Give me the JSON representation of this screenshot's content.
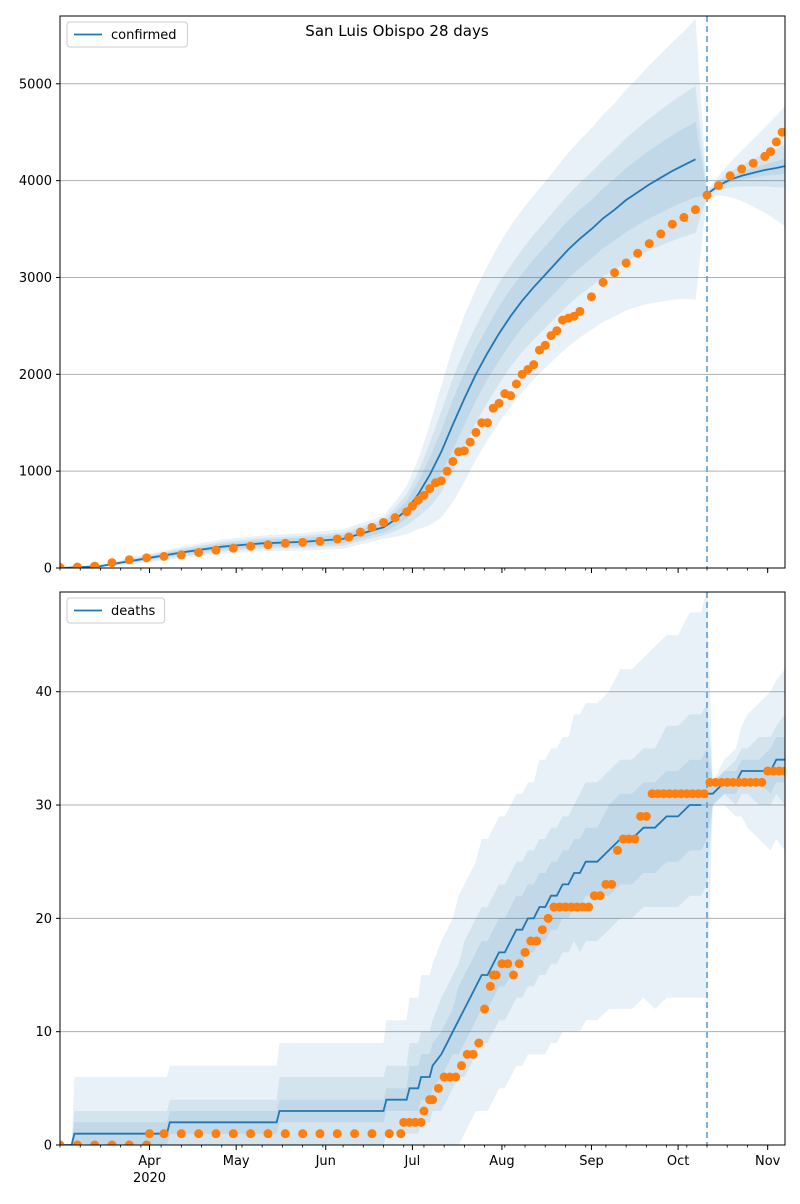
{
  "title": "San Luis Obispo 28 days",
  "colors": {
    "model": "#1f77b4",
    "observed": "#ff7f0e",
    "band": "#1f77b4",
    "grid": "#b0b0b0",
    "forecast_start": "#5aa0d8"
  },
  "x_ticks": [
    {
      "label": "Apr",
      "sub": "2020",
      "day": 31
    },
    {
      "label": "May",
      "day": 61
    },
    {
      "label": "Jun",
      "day": 92
    },
    {
      "label": "Jul",
      "day": 122
    },
    {
      "label": "Aug",
      "day": 153
    },
    {
      "label": "Sep",
      "day": 184
    },
    {
      "label": "Oct",
      "day": 214
    },
    {
      "label": "Nov",
      "day": 245
    }
  ],
  "chart_data": [
    {
      "type": "line",
      "series_name": "confirmed",
      "legend": "confirmed",
      "legend_position": "top-left",
      "grid": "horizontal",
      "x_start_date": "2020-03-01",
      "xlim_days": [
        0,
        251
      ],
      "ylim": [
        0,
        5700
      ],
      "yticks": [
        0,
        1000,
        2000,
        3000,
        4000,
        5000
      ],
      "forecast_start_day": 224,
      "model_day": [
        0,
        14,
        28,
        42,
        56,
        70,
        84,
        98,
        112,
        116,
        120,
        124,
        128,
        132,
        136,
        140,
        144,
        148,
        152,
        156,
        160,
        164,
        168,
        172,
        176,
        180,
        184,
        188,
        192,
        196,
        200,
        204,
        208,
        212,
        216,
        220,
        224,
        228,
        232,
        236,
        240,
        244,
        248,
        251
      ],
      "model_value": [
        0,
        20,
        90,
        160,
        220,
        255,
        270,
        300,
        420,
        500,
        600,
        760,
        960,
        1200,
        1480,
        1750,
        2000,
        2220,
        2420,
        2600,
        2760,
        2900,
        3030,
        3160,
        3290,
        3400,
        3500,
        3610,
        3700,
        3800,
        3880,
        3960,
        4030,
        4100,
        4160,
        4220,
        3860,
        3950,
        4010,
        4050,
        4080,
        4110,
        4130,
        4150
      ],
      "band_half_widths": [
        [
          0,
          5,
          15,
          25,
          30,
          35,
          40,
          45,
          50,
          70,
          90,
          130,
          180,
          220,
          260,
          270,
          270,
          270,
          280,
          280,
          280,
          290,
          290,
          300,
          300,
          300,
          300,
          310,
          320,
          330,
          340,
          350,
          360,
          370,
          380,
          390,
          10,
          20,
          30,
          40,
          50,
          60,
          70,
          80
        ],
        [
          0,
          10,
          25,
          40,
          50,
          55,
          60,
          70,
          80,
          120,
          160,
          230,
          330,
          420,
          480,
          500,
          500,
          510,
          520,
          520,
          530,
          540,
          550,
          560,
          570,
          580,
          590,
          600,
          620,
          640,
          660,
          680,
          700,
          720,
          740,
          760,
          20,
          50,
          80,
          110,
          140,
          170,
          200,
          220
        ],
        [
          0,
          15,
          40,
          60,
          75,
          80,
          90,
          100,
          120,
          180,
          250,
          360,
          520,
          680,
          800,
          860,
          880,
          900,
          920,
          930,
          940,
          950,
          960,
          980,
          1000,
          1020,
          1040,
          1070,
          1100,
          1140,
          1180,
          1230,
          1280,
          1330,
          1380,
          1450,
          40,
          100,
          180,
          260,
          350,
          440,
          540,
          620
        ]
      ],
      "observed_day": [
        0,
        6,
        12,
        18,
        24,
        30,
        36,
        42,
        48,
        54,
        60,
        66,
        72,
        78,
        84,
        90,
        96,
        100,
        104,
        108,
        112,
        116,
        120,
        122,
        124,
        126,
        128,
        130,
        132,
        134,
        136,
        138,
        140,
        142,
        144,
        146,
        148,
        150,
        152,
        154,
        156,
        158,
        160,
        162,
        164,
        166,
        168,
        170,
        172,
        174,
        176,
        178,
        180,
        184,
        188,
        192,
        196,
        200,
        204,
        208,
        212,
        216,
        220,
        224,
        228,
        232,
        236,
        240,
        244,
        246,
        248,
        250
      ],
      "observed_value": [
        5,
        10,
        20,
        55,
        85,
        105,
        120,
        135,
        160,
        185,
        205,
        225,
        240,
        255,
        265,
        275,
        300,
        320,
        370,
        420,
        470,
        520,
        580,
        640,
        700,
        750,
        820,
        880,
        900,
        1000,
        1100,
        1200,
        1210,
        1300,
        1400,
        1500,
        1500,
        1650,
        1700,
        1800,
        1780,
        1900,
        2000,
        2050,
        2100,
        2250,
        2300,
        2400,
        2450,
        2560,
        2580,
        2600,
        2650,
        2800,
        2950,
        3050,
        3150,
        3250,
        3350,
        3450,
        3550,
        3620,
        3700,
        3850,
        3950,
        4050,
        4120,
        4180,
        4250,
        4300,
        4400,
        4500
      ]
    },
    {
      "type": "line",
      "series_name": "deaths",
      "legend": "deaths",
      "legend_position": "top-left",
      "grid": "horizontal",
      "x_start_date": "2020-03-01",
      "xlim_days": [
        0,
        251
      ],
      "ylim": [
        0,
        48.8
      ],
      "yticks": [
        0,
        10,
        20,
        30,
        40
      ],
      "forecast_start_day": 224,
      "model_day": [
        0,
        4,
        5,
        37,
        38,
        75,
        76,
        112,
        113,
        120,
        121,
        124,
        125,
        128,
        129,
        132,
        134,
        136,
        138,
        140,
        142,
        144,
        146,
        148,
        150,
        152,
        154,
        156,
        158,
        160,
        162,
        164,
        166,
        168,
        170,
        172,
        174,
        176,
        178,
        180,
        182,
        186,
        190,
        194,
        198,
        202,
        206,
        210,
        214,
        218,
        222,
        224,
        226,
        230,
        234,
        236,
        238,
        242,
        246,
        248,
        251
      ],
      "model_value": [
        0,
        0,
        1,
        1,
        2,
        2,
        3,
        3,
        4,
        4,
        5,
        5,
        6,
        6,
        7,
        8,
        9,
        10,
        11,
        12,
        13,
        14,
        15,
        15,
        16,
        17,
        17,
        18,
        19,
        19,
        20,
        20,
        21,
        21,
        22,
        22,
        23,
        23,
        24,
        24,
        25,
        25,
        26,
        27,
        27,
        28,
        28,
        29,
        29,
        30,
        30,
        31,
        31,
        32,
        32,
        33,
        33,
        33,
        33,
        34,
        34
      ],
      "band_half_widths": [
        [
          0,
          0,
          1,
          1,
          1,
          1,
          1,
          1,
          1,
          1,
          2,
          2,
          2,
          2,
          2,
          2,
          2,
          2,
          3,
          3,
          3,
          3,
          3,
          3,
          3,
          3,
          3,
          3,
          3,
          3,
          3,
          3,
          3,
          3,
          3,
          3,
          3,
          3,
          3,
          3,
          3,
          3,
          4,
          4,
          4,
          4,
          4,
          4,
          4,
          4,
          4,
          4,
          1,
          1,
          1,
          1,
          1,
          1,
          2,
          2,
          2
        ],
        [
          0,
          0,
          2,
          2,
          2,
          2,
          3,
          3,
          3,
          3,
          4,
          4,
          4,
          4,
          4,
          5,
          5,
          5,
          5,
          6,
          6,
          6,
          6,
          6,
          6,
          6,
          6,
          6,
          6,
          6,
          6,
          6,
          6,
          6,
          6,
          6,
          6,
          6,
          6,
          7,
          7,
          7,
          7,
          7,
          7,
          7,
          7,
          8,
          8,
          8,
          8,
          8,
          1,
          1,
          2,
          2,
          2,
          3,
          3,
          3,
          4
        ],
        [
          0,
          0,
          5,
          5,
          5,
          5,
          6,
          6,
          7,
          7,
          8,
          8,
          9,
          9,
          9,
          10,
          10,
          10,
          11,
          11,
          11,
          11,
          12,
          12,
          12,
          12,
          12,
          12,
          12,
          12,
          12,
          12,
          13,
          13,
          13,
          13,
          13,
          13,
          14,
          14,
          14,
          14,
          14,
          15,
          15,
          15,
          16,
          16,
          16,
          17,
          17,
          18,
          1,
          2,
          3,
          4,
          5,
          6,
          7,
          7,
          8
        ]
      ],
      "observed_day": [
        0,
        6,
        12,
        18,
        24,
        30,
        31,
        36,
        42,
        48,
        54,
        60,
        66,
        72,
        78,
        84,
        90,
        96,
        102,
        108,
        114,
        118,
        119,
        121,
        123,
        125,
        126,
        128,
        129,
        131,
        133,
        135,
        137,
        139,
        141,
        143,
        145,
        147,
        149,
        150,
        151,
        153,
        155,
        157,
        159,
        161,
        163,
        165,
        167,
        169,
        171,
        173,
        175,
        177,
        179,
        181,
        183,
        185,
        187,
        189,
        191,
        193,
        195,
        197,
        199,
        201,
        203,
        205,
        207,
        209,
        211,
        213,
        215,
        217,
        219,
        221,
        223,
        225,
        227,
        229,
        231,
        233,
        235,
        237,
        239,
        241,
        243,
        245,
        247,
        249,
        251
      ],
      "observed_value": [
        0,
        0,
        0,
        0,
        0,
        0,
        1,
        1,
        1,
        1,
        1,
        1,
        1,
        1,
        1,
        1,
        1,
        1,
        1,
        1,
        1,
        1,
        2,
        2,
        2,
        2,
        3,
        4,
        4,
        5,
        6,
        6,
        6,
        7,
        8,
        8,
        9,
        12,
        14,
        15,
        15,
        16,
        16,
        15,
        16,
        17,
        18,
        18,
        19,
        20,
        21,
        21,
        21,
        21,
        21,
        21,
        21,
        22,
        22,
        23,
        23,
        26,
        27,
        27,
        27,
        29,
        29,
        31,
        31,
        31,
        31,
        31,
        31,
        31,
        31,
        31,
        31,
        32,
        32,
        32,
        32,
        32,
        32,
        32,
        32,
        32,
        32,
        33,
        33,
        33,
        33
      ]
    }
  ]
}
